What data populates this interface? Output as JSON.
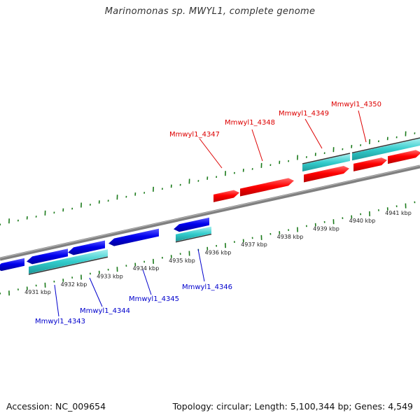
{
  "title": "Marinomonas sp. MWYL1, complete genome",
  "footer": {
    "accession": "Accession: NC_009654",
    "summary": "Topology: circular; Length: 5,100,344 bp; Genes: 4,549"
  },
  "colors": {
    "forward_cds": "#ff0000",
    "reverse_cds": "#0000ff",
    "gene_bar": "#33cccc",
    "tick": "#1a7a1a",
    "backbone": "#808080",
    "forward_label": "#dd0000",
    "reverse_label": "#0000cc"
  },
  "scale": {
    "unit": "kbp",
    "ticks": [
      {
        "kbp": 4931,
        "label": "4931 kbp"
      },
      {
        "kbp": 4932,
        "label": "4932 kbp"
      },
      {
        "kbp": 4933,
        "label": "4933 kbp"
      },
      {
        "kbp": 4934,
        "label": "4934 kbp"
      },
      {
        "kbp": 4935,
        "label": "4935 kbp"
      },
      {
        "kbp": 4936,
        "label": "4936 kbp"
      },
      {
        "kbp": 4937,
        "label": "4937 kbp"
      },
      {
        "kbp": 4938,
        "label": "4938 kbp"
      },
      {
        "kbp": 4939,
        "label": "4939 kbp"
      },
      {
        "kbp": 4940,
        "label": "4940 kbp"
      },
      {
        "kbp": 4941,
        "label": "4941 kbp"
      }
    ]
  },
  "genes": [
    {
      "name": "Mmwyl1_4343",
      "strand": "reverse"
    },
    {
      "name": "Mmwyl1_4344",
      "strand": "reverse"
    },
    {
      "name": "Mmwyl1_4345",
      "strand": "reverse"
    },
    {
      "name": "Mmwyl1_4346",
      "strand": "reverse"
    },
    {
      "name": "Mmwyl1_4347",
      "strand": "forward"
    },
    {
      "name": "Mmwyl1_4348",
      "strand": "forward"
    },
    {
      "name": "Mmwyl1_4349",
      "strand": "forward"
    },
    {
      "name": "Mmwyl1_4350",
      "strand": "forward"
    }
  ]
}
